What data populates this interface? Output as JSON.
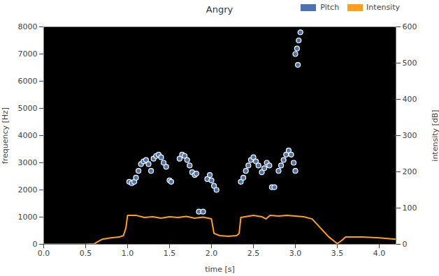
{
  "chart_data": {
    "type": "line",
    "title": "Angry",
    "x_label": "time [s]",
    "y_label": "frequency [Hz]",
    "y2_label": "intensity [dB]",
    "xlim": [
      0,
      4.2
    ],
    "xticks": [
      {
        "value": 0,
        "label": "0.0"
      },
      {
        "value": 0.5,
        "label": "0.5"
      },
      {
        "value": 1,
        "label": "1.0"
      },
      {
        "value": 1.5,
        "label": "1.5"
      },
      {
        "value": 2,
        "label": "2.0"
      },
      {
        "value": 2.5,
        "label": "2.5"
      },
      {
        "value": 3,
        "label": "3.0"
      },
      {
        "value": 3.5,
        "label": "3.5"
      },
      {
        "value": 4,
        "label": "4.0"
      }
    ],
    "ylim": [
      0,
      8000
    ],
    "yticks": [
      0,
      1000,
      2000,
      3000,
      4000,
      5000,
      6000,
      7000,
      8000
    ],
    "y2lim": [
      0,
      600
    ],
    "y2ticks": [
      0,
      100,
      200,
      300,
      400,
      500,
      600
    ],
    "legend": "upper right",
    "grid": false,
    "series": [
      {
        "name": "Pitch",
        "type": "scatter",
        "marker": "circle",
        "color": "#4c72b0",
        "x": [
          1.02,
          1.05,
          1.08,
          1.1,
          1.13,
          1.16,
          1.19,
          1.22,
          1.25,
          1.28,
          1.31,
          1.34,
          1.37,
          1.4,
          1.43,
          1.46,
          1.5,
          1.52,
          1.62,
          1.65,
          1.68,
          1.71,
          1.74,
          1.77,
          1.8,
          1.82,
          1.85,
          1.9,
          1.95,
          1.98,
          2.0,
          2.03,
          2.06,
          2.35,
          2.38,
          2.41,
          2.44,
          2.47,
          2.5,
          2.53,
          2.56,
          2.6,
          2.63,
          2.66,
          2.69,
          2.72,
          2.75,
          2.8,
          2.83,
          2.86,
          2.89,
          2.92,
          2.95,
          2.98,
          3.0,
          3.0,
          3.02,
          3.04,
          3.06,
          3.03
        ],
        "values": [
          2300,
          2250,
          2300,
          2450,
          2700,
          2950,
          3050,
          3100,
          2950,
          2700,
          3150,
          3250,
          3300,
          3200,
          3000,
          2850,
          2350,
          2300,
          3150,
          3300,
          3250,
          3100,
          2900,
          2650,
          2550,
          2600,
          1200,
          1200,
          2400,
          2550,
          2350,
          2150,
          2000,
          2300,
          2450,
          2700,
          2900,
          3100,
          3200,
          3050,
          2900,
          2650,
          2800,
          3000,
          2900,
          2100,
          2100,
          2700,
          2900,
          3100,
          3300,
          3450,
          3300,
          3000,
          2700,
          7000,
          7200,
          7500,
          7800,
          6600
        ]
      },
      {
        "name": "Intensity",
        "type": "line",
        "line_style": "solid",
        "axis": "y2",
        "color": "#ff9f1c",
        "x": [
          0,
          0.1,
          0.2,
          0.3,
          0.4,
          0.5,
          0.6,
          0.65,
          0.7,
          0.8,
          0.9,
          0.95,
          0.98,
          1.0,
          1.1,
          1.2,
          1.3,
          1.4,
          1.5,
          1.6,
          1.7,
          1.8,
          1.9,
          2.0,
          2.03,
          2.1,
          2.2,
          2.3,
          2.33,
          2.35,
          2.4,
          2.5,
          2.6,
          2.65,
          2.7,
          2.8,
          2.9,
          3.0,
          3.1,
          3.2,
          3.3,
          3.4,
          3.5,
          3.55,
          3.6,
          3.8,
          4.0,
          4.1,
          4.2
        ],
        "values": [
          0,
          0,
          0,
          0,
          0,
          0,
          1,
          8,
          14,
          18,
          20,
          24,
          45,
          80,
          80,
          74,
          76,
          72,
          76,
          74,
          77,
          72,
          75,
          70,
          30,
          24,
          22,
          24,
          30,
          74,
          76,
          80,
          76,
          70,
          80,
          78,
          80,
          78,
          76,
          70,
          45,
          20,
          2,
          10,
          20,
          20,
          18,
          16,
          14
        ]
      }
    ]
  }
}
